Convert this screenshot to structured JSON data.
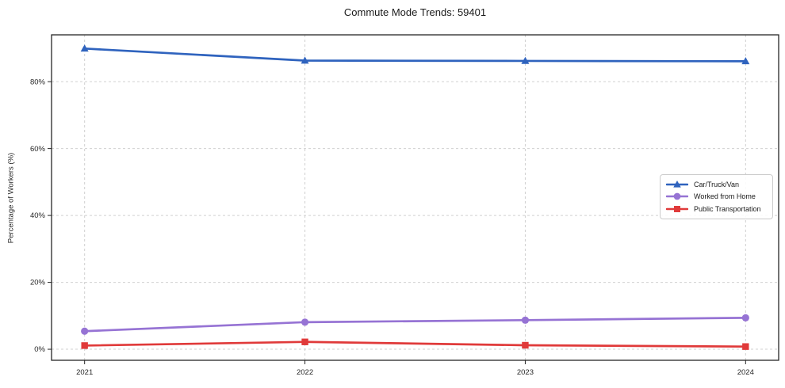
{
  "chart_data": {
    "type": "line",
    "title": "Commute Mode Trends: 59401",
    "xlabel": "",
    "ylabel": "Percentage of Workers (%)",
    "categories": [
      "2021",
      "2022",
      "2023",
      "2024"
    ],
    "series": [
      {
        "name": "Car/Truck/Van",
        "values": [
          89.9,
          86.3,
          86.2,
          86.1
        ],
        "color": "#2f63be",
        "marker": "triangle"
      },
      {
        "name": "Worked from Home",
        "values": [
          5.4,
          8.1,
          8.7,
          9.4
        ],
        "color": "#9673d4",
        "marker": "circle"
      },
      {
        "name": "Public Transportation",
        "values": [
          1.1,
          2.2,
          1.2,
          0.8
        ],
        "color": "#e03a3a",
        "marker": "square"
      }
    ],
    "yticks": [
      0,
      20,
      40,
      60,
      80
    ],
    "ytick_labels": [
      "0%",
      "20%",
      "40%",
      "60%",
      "80%"
    ],
    "ylim": [
      -3.3,
      94
    ],
    "grid": true,
    "grid_style": "dashed",
    "legend_position": "center right",
    "colors": {
      "grid": "#d0d0d0",
      "axis_border": "#262626",
      "tick_text": "#262626",
      "title_text": "#1a1a1a",
      "legend_border": "#cccccc"
    }
  }
}
